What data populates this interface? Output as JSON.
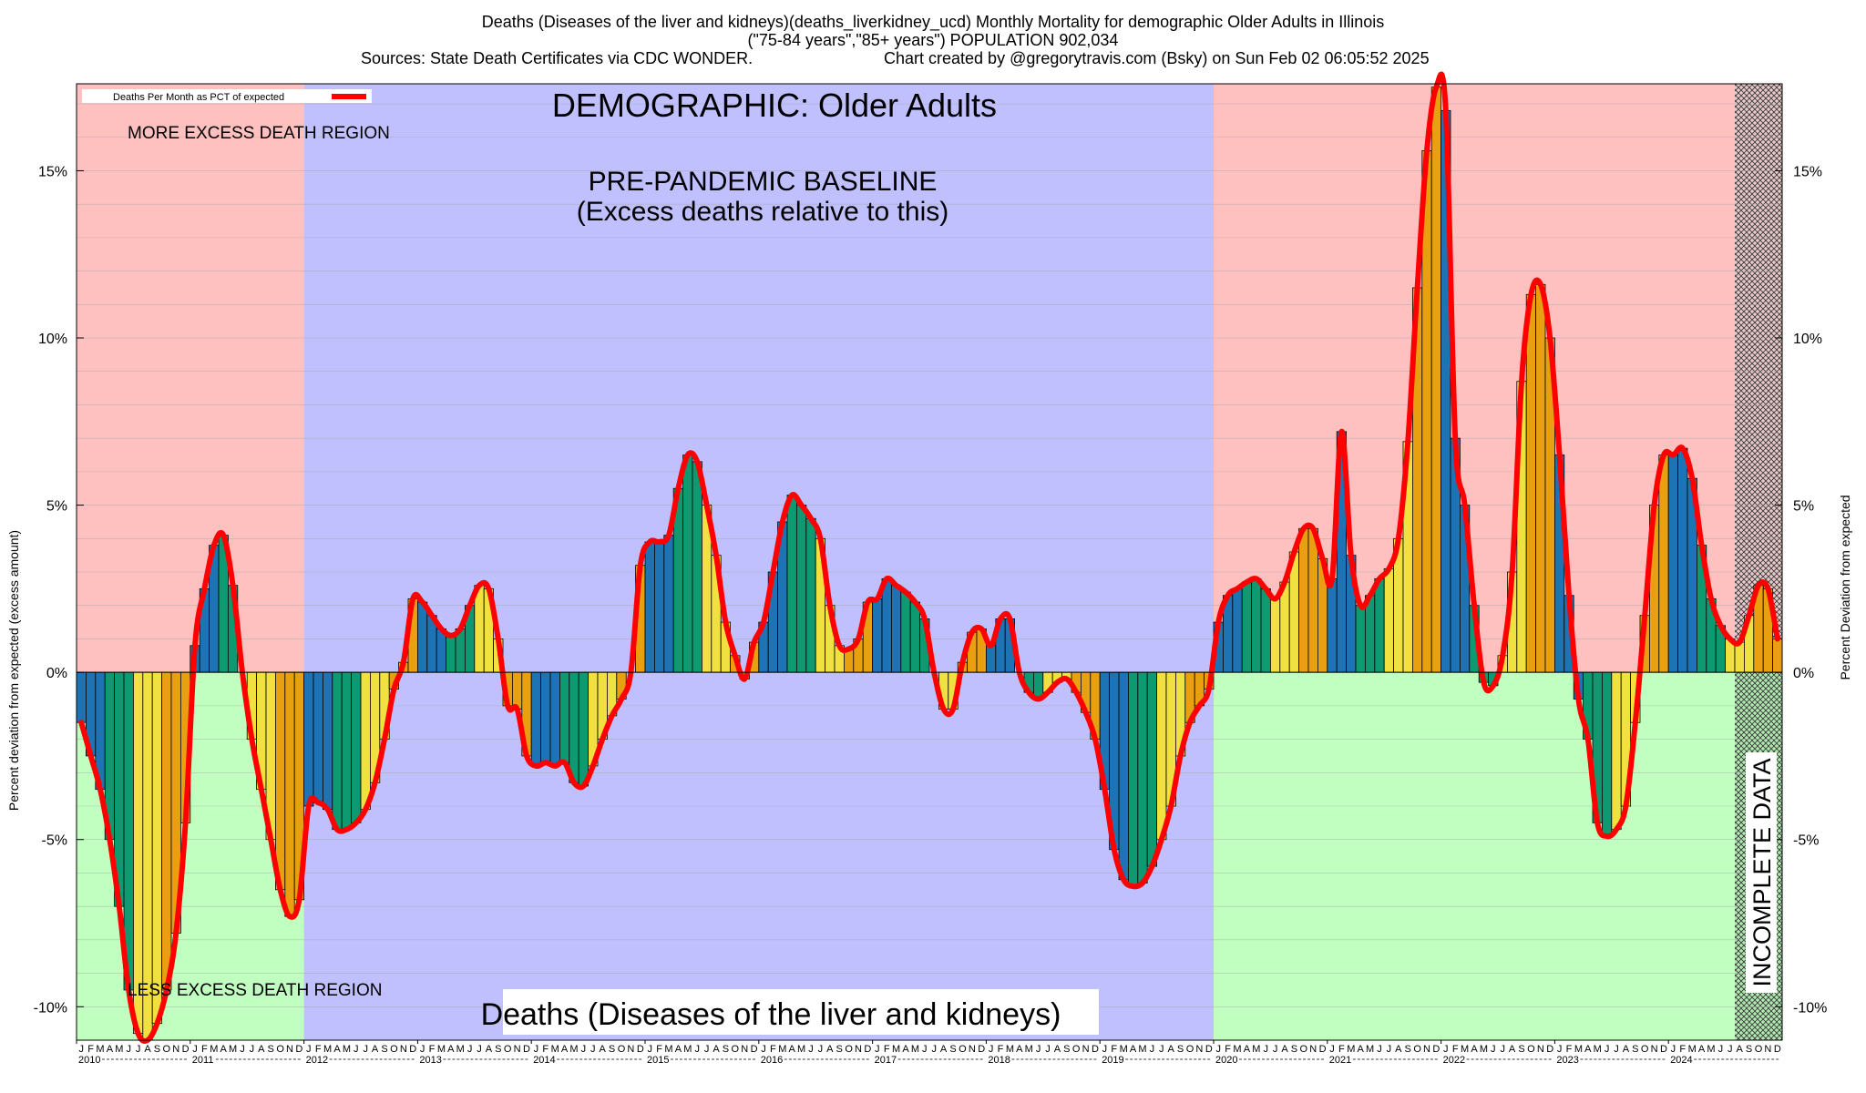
{
  "header": {
    "title_line1": "Deaths (Diseases of the liver and kidneys)(deaths_liverkidney_ucd) Monthly Mortality for demographic Older Adults in Illinois",
    "title_line2": "(\"75-84 years\",\"85+ years\") POPULATION 902,034",
    "sources": "Sources: State Death Certificates via CDC WONDER.",
    "credit": "Chart created by @gregorytravis.com (Bsky) on Sun Feb 02 06:05:52 2025"
  },
  "annotations": {
    "demographic": "DEMOGRAPHIC: Older Adults",
    "baseline_line1": "PRE-PANDEMIC BASELINE",
    "baseline_line2": "(Excess deaths relative to this)",
    "more_excess": "MORE EXCESS DEATH REGION",
    "less_excess": "LESS EXCESS DEATH REGION",
    "incomplete": "INCOMPLETE DATA",
    "bottom_label": "Deaths (Diseases of the liver and kidneys)"
  },
  "legend": {
    "label": "Deaths Per Month as PCT of expected",
    "line_color": "#ff0000"
  },
  "colors": {
    "excess_region": "#ffc0c0",
    "deficit_region": "#c0ffc0",
    "baseline_region": "#c0c0ff",
    "incomplete_region": "#b06070",
    "bar_palette": [
      "#1e73b4",
      "#0e9970",
      "#f0e040",
      "#e8a010"
    ],
    "curve": "#ff0000"
  },
  "chart_data": {
    "type": "bar",
    "title": "Deaths (Diseases of the liver and kidneys)(deaths_liverkidney_ucd) Monthly Mortality for demographic Older Adults in Illinois",
    "ylabel_left": "Percent deviation from expected (excess amount)",
    "ylabel_right": "Percent Deviation from expected",
    "ylim": [
      -11,
      17.6
    ],
    "yticks": [
      -10,
      -5,
      0,
      5,
      10,
      15
    ],
    "ytick_labels": [
      "-10%",
      "-5%",
      "0%",
      "5%",
      "10%",
      "15%"
    ],
    "x_start": "2010-01",
    "x_end": "2024-12",
    "years": [
      "2010",
      "2011",
      "2012",
      "2013",
      "2014",
      "2015",
      "2016",
      "2017",
      "2018",
      "2019",
      "2020",
      "2021",
      "2022",
      "2023",
      "2024"
    ],
    "month_letters": [
      "J",
      "F",
      "M",
      "A",
      "M",
      "J",
      "J",
      "A",
      "S",
      "O",
      "N",
      "D"
    ],
    "baseline_period": [
      "2012-01",
      "2019-12"
    ],
    "incomplete_from": "2024-08",
    "series": [
      {
        "name": "Deaths Per Month as PCT of expected",
        "values": [
          -1.5,
          -2.5,
          -3.5,
          -5.0,
          -7.0,
          -9.5,
          -10.8,
          -11.0,
          -10.5,
          -9.5,
          -7.8,
          -4.5,
          0.8,
          2.5,
          3.8,
          4.1,
          2.6,
          0.0,
          -2.0,
          -3.5,
          -5.0,
          -6.5,
          -7.3,
          -6.8,
          -4.0,
          -3.9,
          -4.1,
          -4.7,
          -4.7,
          -4.5,
          -4.1,
          -3.3,
          -2.0,
          -0.5,
          0.3,
          2.2,
          2.1,
          1.7,
          1.3,
          1.1,
          1.3,
          2.0,
          2.6,
          2.5,
          1.0,
          -1.0,
          -1.1,
          -2.5,
          -2.8,
          -2.7,
          -2.8,
          -2.7,
          -3.3,
          -3.4,
          -2.8,
          -2.0,
          -1.3,
          -0.8,
          0.0,
          3.2,
          3.9,
          3.9,
          4.1,
          5.5,
          6.5,
          6.3,
          5.0,
          3.5,
          1.5,
          0.5,
          -0.2,
          0.9,
          1.5,
          3.0,
          4.5,
          5.3,
          5.0,
          4.6,
          4.0,
          2.0,
          0.8,
          0.7,
          1.0,
          2.1,
          2.2,
          2.8,
          2.6,
          2.4,
          2.1,
          1.6,
          0.0,
          -1.1,
          -1.1,
          0.3,
          1.2,
          1.3,
          0.8,
          1.6,
          1.6,
          0.0,
          -0.6,
          -0.8,
          -0.6,
          -0.3,
          -0.2,
          -0.6,
          -1.2,
          -2.0,
          -3.5,
          -5.3,
          -6.2,
          -6.4,
          -6.3,
          -5.8,
          -5.0,
          -4.0,
          -2.5,
          -1.5,
          -1.0,
          -0.5,
          1.5,
          2.3,
          2.5,
          2.7,
          2.8,
          2.5,
          2.2,
          2.7,
          3.6,
          4.3,
          4.3,
          3.4,
          2.8,
          7.2,
          3.5,
          2.0,
          2.3,
          2.8,
          3.1,
          4.0,
          6.9,
          11.5,
          15.6,
          17.5,
          16.8,
          7.0,
          5.0,
          2.0,
          -0.3,
          -0.4,
          0.5,
          3.0,
          8.7,
          11.3,
          11.6,
          10.0,
          6.5,
          2.3,
          -0.8,
          -2.0,
          -4.5,
          -4.9,
          -4.7,
          -4.0,
          -1.5,
          1.7,
          5.0,
          6.5,
          6.5,
          6.7,
          5.8,
          3.8,
          2.2,
          1.4,
          1.0,
          0.9,
          1.7,
          2.6,
          2.5,
          1.0
        ]
      }
    ],
    "legend_position": "top-left",
    "grid": true
  }
}
